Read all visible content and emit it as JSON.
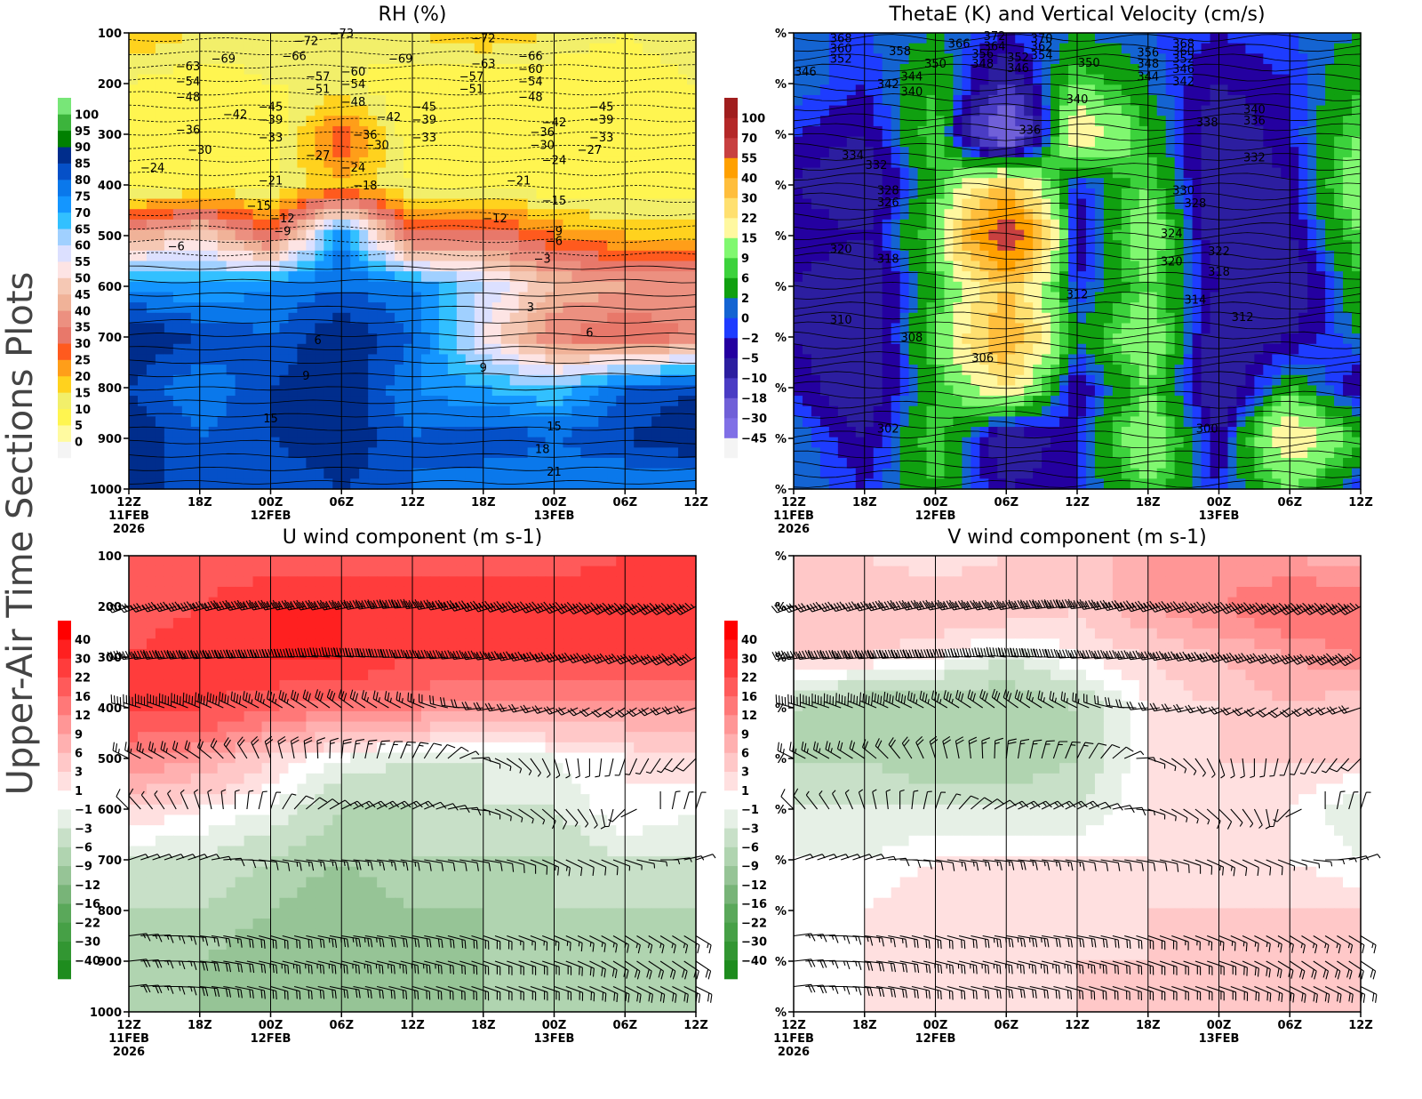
{
  "page_title": "Upper-Air Time Sections Plots",
  "chart_data": [
    {
      "id": "rh",
      "type": "heatmap",
      "title": "RH (%)",
      "x_ticks": [
        "12Z",
        "18Z",
        "00Z",
        "06Z",
        "12Z",
        "18Z",
        "00Z",
        "06Z",
        "12Z"
      ],
      "x_dates": [
        "11FEB",
        "",
        "12FEB",
        "",
        "",
        "",
        "13FEB",
        "",
        ""
      ],
      "x_year": "2026",
      "x_times": [
        "2026-02-11T12",
        "2026-02-11T18",
        "2026-02-12T00",
        "2026-02-12T06",
        "2026-02-12T12",
        "2026-02-12T18",
        "2026-02-13T00",
        "2026-02-13T06",
        "2026-02-13T12"
      ],
      "y_levels": [
        1000,
        900,
        800,
        700,
        600,
        500,
        400,
        300,
        200,
        100
      ],
      "y_tick_labels": [
        "1000",
        "900",
        "800",
        "700",
        "600",
        "500",
        "400",
        "300",
        "200",
        "100"
      ],
      "ylim": [
        1000,
        100
      ],
      "colorbar_levels": [
        0,
        5,
        10,
        15,
        20,
        25,
        30,
        35,
        40,
        45,
        50,
        55,
        60,
        65,
        70,
        75,
        80,
        85,
        90,
        95,
        100
      ],
      "colorbar_labels": [
        "0",
        "5",
        "10",
        "15",
        "20",
        "25",
        "30",
        "35",
        "40",
        "45",
        "50",
        "55",
        "60",
        "65",
        "70",
        "75",
        "80",
        "85",
        "90",
        "95",
        "100"
      ],
      "colors": [
        "#f4f4f4",
        "#fffaa0",
        "#fff550",
        "#f2ef6a",
        "#ffd21e",
        "#ff9e19",
        "#ff5a1e",
        "#e8786a",
        "#ec9080",
        "#f0b298",
        "#f5c8b4",
        "#fde4e4",
        "#dce0ff",
        "#a0d0ff",
        "#32c0ff",
        "#1496ff",
        "#0a78eb",
        "#0550c8",
        "#002d8c",
        "#008000",
        "#3cb43c",
        "#78e678"
      ],
      "values": [
        [
          85,
          85,
          80,
          85,
          80,
          75,
          75,
          75,
          75
        ],
        [
          90,
          80,
          85,
          90,
          80,
          85,
          80,
          85,
          90
        ],
        [
          85,
          75,
          85,
          90,
          75,
          70,
          65,
          80,
          85
        ],
        [
          90,
          85,
          80,
          90,
          80,
          55,
          35,
          30,
          35
        ],
        [
          75,
          70,
          75,
          80,
          75,
          60,
          45,
          40,
          40
        ],
        [
          40,
          50,
          30,
          75,
          30,
          35,
          25,
          20,
          20
        ],
        [
          5,
          10,
          10,
          20,
          10,
          10,
          5,
          5,
          5
        ],
        [
          5,
          5,
          5,
          30,
          5,
          5,
          5,
          10,
          10
        ],
        [
          10,
          5,
          10,
          10,
          5,
          5,
          5,
          5,
          10
        ],
        [
          20,
          15,
          15,
          15,
          15,
          20,
          15,
          10,
          15
        ]
      ],
      "contour_labels": [
        [
          "-69",
          "2026-02-11T20",
          150
        ],
        [
          "-72",
          "2026-02-12T03",
          115
        ],
        [
          "-66",
          "2026-02-12T02",
          145
        ],
        [
          "-73",
          "2026-02-12T06",
          100
        ],
        [
          "-63",
          "2026-02-11T17",
          165
        ],
        [
          "-54",
          "2026-02-11T17",
          195
        ],
        [
          "-48",
          "2026-02-11T17",
          225
        ],
        [
          "-42",
          "2026-02-11T21",
          260
        ],
        [
          "-45",
          "2026-02-12T00",
          245
        ],
        [
          "-39",
          "2026-02-12T00",
          270
        ],
        [
          "-33",
          "2026-02-12T00",
          305
        ],
        [
          "-36",
          "2026-02-11T17",
          290
        ],
        [
          "-30",
          "2026-02-11T18",
          330
        ],
        [
          "-24",
          "2026-02-11T14",
          365
        ],
        [
          "-21",
          "2026-02-12T00",
          390
        ],
        [
          "-57",
          "2026-02-12T04",
          185
        ],
        [
          "-51",
          "2026-02-12T04",
          210
        ],
        [
          "-60",
          "2026-02-12T07",
          175
        ],
        [
          "-54",
          "2026-02-12T07",
          200
        ],
        [
          "-48",
          "2026-02-12T07",
          235
        ],
        [
          "-27",
          "2026-02-12T04",
          340
        ],
        [
          "-24",
          "2026-02-12T07",
          365
        ],
        [
          "-18",
          "2026-02-12T08",
          400
        ],
        [
          "-36",
          "2026-02-12T08",
          300
        ],
        [
          "-30",
          "2026-02-12T09",
          320
        ],
        [
          "-42",
          "2026-02-12T10",
          265
        ],
        [
          "-69",
          "2026-02-12T11",
          150
        ],
        [
          "-45",
          "2026-02-12T13",
          245
        ],
        [
          "-39",
          "2026-02-12T13",
          270
        ],
        [
          "-33",
          "2026-02-12T13",
          305
        ],
        [
          "-15",
          "2026-02-11T23",
          440
        ],
        [
          "-12",
          "2026-02-12T01",
          465
        ],
        [
          "-9",
          "2026-02-12T01",
          490
        ],
        [
          "-6",
          "2026-02-11T16",
          520
        ],
        [
          "-72",
          "2026-02-12T18",
          110
        ],
        [
          "-63",
          "2026-02-12T18",
          160
        ],
        [
          "-57",
          "2026-02-12T17",
          185
        ],
        [
          "-51",
          "2026-02-12T17",
          210
        ],
        [
          "-66",
          "2026-02-12T22",
          145
        ],
        [
          "-60",
          "2026-02-12T22",
          170
        ],
        [
          "-54",
          "2026-02-12T22",
          195
        ],
        [
          "-48",
          "2026-02-12T22",
          225
        ],
        [
          "-42",
          "2026-02-13T00",
          275
        ],
        [
          "-36",
          "2026-02-12T23",
          295
        ],
        [
          "-30",
          "2026-02-12T23",
          320
        ],
        [
          "-24",
          "2026-02-13T00",
          350
        ],
        [
          "-21",
          "2026-02-12T21",
          390
        ],
        [
          "-15",
          "2026-02-13T00",
          430
        ],
        [
          "-12",
          "2026-02-12T19",
          465
        ],
        [
          "-9",
          "2026-02-13T00",
          490
        ],
        [
          "-6",
          "2026-02-13T00",
          510
        ],
        [
          "-3",
          "2026-02-12T23",
          545
        ],
        [
          "-45",
          "2026-02-13T04",
          245
        ],
        [
          "-39",
          "2026-02-13T04",
          270
        ],
        [
          "-33",
          "2026-02-13T04",
          305
        ],
        [
          "-27",
          "2026-02-13T03",
          330
        ],
        [
          "3",
          "2026-02-12T22",
          640
        ],
        [
          "6",
          "2026-02-13T03",
          690
        ],
        [
          "6",
          "2026-02-12T04",
          705
        ],
        [
          "9",
          "2026-02-12T18",
          760
        ],
        [
          "9",
          "2026-02-12T03",
          775
        ],
        [
          "15",
          "2026-02-12T00",
          860
        ],
        [
          "15",
          "2026-02-13T00",
          875
        ],
        [
          "18",
          "2026-02-12T23",
          920
        ],
        [
          "21",
          "2026-02-13T00",
          965
        ]
      ]
    },
    {
      "id": "thetae",
      "type": "heatmap",
      "title": "ThetaE (K) and Vertical Velocity (cm/s)",
      "y_tick_labels": [
        "%",
        "%",
        "%",
        "%",
        "%",
        "%",
        "%",
        "%",
        "%",
        "%"
      ],
      "colorbar_levels": [
        -45,
        -30,
        -18,
        -10,
        -5,
        -2,
        0,
        2,
        6,
        9,
        15,
        22,
        30,
        40,
        55,
        70,
        100
      ],
      "colorbar_labels": [
        "-45",
        "-30",
        "-18",
        "-10",
        "-5",
        "-2",
        "0",
        "2",
        "6",
        "9",
        "15",
        "22",
        "30",
        "40",
        "55",
        "70",
        "100"
      ],
      "colors": [
        "#f4f4f4",
        "#8070e6",
        "#7060d8",
        "#4a3cc4",
        "#2c1ea0",
        "#2400a0",
        "#1e3cff",
        "#1464d2",
        "#10a010",
        "#3cd23c",
        "#80f870",
        "#fff8a0",
        "#ffe070",
        "#ffbe3c",
        "#ffa000",
        "#c84040",
        "#b42828",
        "#a01e1e"
      ],
      "values": [
        [
          2,
          -2,
          6,
          -5,
          -2,
          9,
          -2,
          9,
          -2
        ],
        [
          2,
          -5,
          9,
          -10,
          -2,
          15,
          -5,
          22,
          6
        ],
        [
          -2,
          -10,
          6,
          22,
          -5,
          9,
          -10,
          6,
          -5
        ],
        [
          -5,
          -10,
          9,
          40,
          2,
          15,
          -10,
          -5,
          2
        ],
        [
          -5,
          -10,
          6,
          30,
          -2,
          9,
          -5,
          -10,
          6
        ],
        [
          -2,
          -5,
          9,
          70,
          -5,
          15,
          -10,
          -5,
          9
        ],
        [
          -5,
          -10,
          6,
          30,
          -2,
          9,
          -10,
          -5,
          15
        ],
        [
          -2,
          -5,
          9,
          -30,
          22,
          6,
          -10,
          -2,
          9
        ],
        [
          2,
          -2,
          6,
          -10,
          9,
          2,
          -5,
          -2,
          6
        ],
        [
          0,
          0,
          2,
          -2,
          2,
          0,
          -2,
          0,
          2
        ]
      ],
      "contour_labels": [
        [
          "368",
          "2026-02-11T16",
          110
        ],
        [
          "360",
          "2026-02-11T16",
          130
        ],
        [
          "352",
          "2026-02-11T16",
          150
        ],
        [
          "346",
          "2026-02-11T13",
          175
        ],
        [
          "358",
          "2026-02-11T21",
          135
        ],
        [
          "342",
          "2026-02-11T20",
          200
        ],
        [
          "344",
          "2026-02-11T22",
          185
        ],
        [
          "340",
          "2026-02-11T22",
          215
        ],
        [
          "350",
          "2026-02-12T00",
          160
        ],
        [
          "366",
          "2026-02-12T02",
          120
        ],
        [
          "356",
          "2026-02-12T04",
          140
        ],
        [
          "348",
          "2026-02-12T04",
          160
        ],
        [
          "372",
          "2026-02-12T05",
          105
        ],
        [
          "364",
          "2026-02-12T05",
          125
        ],
        [
          "352",
          "2026-02-12T07",
          147
        ],
        [
          "346",
          "2026-02-12T07",
          168
        ],
        [
          "370",
          "2026-02-12T09",
          110
        ],
        [
          "362",
          "2026-02-12T09",
          125
        ],
        [
          "354",
          "2026-02-12T09",
          143
        ],
        [
          "336",
          "2026-02-12T08",
          290
        ],
        [
          "350",
          "2026-02-12T13",
          158
        ],
        [
          "340",
          "2026-02-12T12",
          230
        ],
        [
          "356",
          "2026-02-12T18",
          138
        ],
        [
          "348",
          "2026-02-12T18",
          160
        ],
        [
          "344",
          "2026-02-12T18",
          185
        ],
        [
          "368",
          "2026-02-12T21",
          120
        ],
        [
          "360",
          "2026-02-12T21",
          135
        ],
        [
          "352",
          "2026-02-12T21",
          150
        ],
        [
          "346",
          "2026-02-12T21",
          170
        ],
        [
          "342",
          "2026-02-12T21",
          195
        ],
        [
          "338",
          "2026-02-12T23",
          275
        ],
        [
          "340",
          "2026-02-13T03",
          250
        ],
        [
          "336",
          "2026-02-13T03",
          272
        ],
        [
          "332",
          "2026-02-13T03",
          345
        ],
        [
          "334",
          "2026-02-11T17",
          340
        ],
        [
          "332",
          "2026-02-11T19",
          360
        ],
        [
          "328",
          "2026-02-11T20",
          410
        ],
        [
          "326",
          "2026-02-11T20",
          433
        ],
        [
          "330",
          "2026-02-12T21",
          410
        ],
        [
          "328",
          "2026-02-12T22",
          435
        ],
        [
          "320",
          "2026-02-11T16",
          525
        ],
        [
          "318",
          "2026-02-11T20",
          545
        ],
        [
          "324",
          "2026-02-12T20",
          495
        ],
        [
          "322",
          "2026-02-13T00",
          530
        ],
        [
          "320",
          "2026-02-12T20",
          550
        ],
        [
          "318",
          "2026-02-13T00",
          570
        ],
        [
          "314",
          "2026-02-12T22",
          625
        ],
        [
          "312",
          "2026-02-12T12",
          615
        ],
        [
          "312",
          "2026-02-13T02",
          660
        ],
        [
          "310",
          "2026-02-11T16",
          665
        ],
        [
          "308",
          "2026-02-11T22",
          700
        ],
        [
          "306",
          "2026-02-12T04",
          740
        ],
        [
          "302",
          "2026-02-11T20",
          880
        ],
        [
          "300",
          "2026-02-12T23",
          880
        ]
      ]
    },
    {
      "id": "u",
      "type": "heatmap",
      "title": "U wind component (m s-1)",
      "colorbar_levels": [
        -40,
        -30,
        -22,
        -16,
        -12,
        -9,
        -6,
        -3,
        -1,
        1,
        3,
        6,
        9,
        12,
        16,
        22,
        30,
        40
      ],
      "colorbar_labels": [
        "-40",
        "-30",
        "-22",
        "-16",
        "-12",
        "-9",
        "-6",
        "-3",
        "-1",
        "1",
        "3",
        "6",
        "9",
        "12",
        "16",
        "22",
        "30",
        "40"
      ],
      "colors": [
        "#1e8c1e",
        "#329632",
        "#46a046",
        "#5aa85a",
        "#78b478",
        "#96c496",
        "#b0d4b0",
        "#c8e0c8",
        "#e6f0e6",
        "#ffffff",
        "#ffe0e0",
        "#ffc8c8",
        "#ffb0b0",
        "#ff9696",
        "#ff7878",
        "#ff5a5a",
        "#ff3c3c",
        "#ff2020",
        "#ff0000"
      ],
      "values": [
        [
          -9,
          -9,
          -9,
          -9,
          -9,
          -9,
          -9,
          -9,
          -9
        ],
        [
          -9,
          -9,
          -12,
          -12,
          -12,
          -9,
          -9,
          -9,
          -9
        ],
        [
          -6,
          -6,
          -9,
          -12,
          -9,
          -9,
          -6,
          -6,
          -6
        ],
        [
          -3,
          -3,
          -6,
          -9,
          -6,
          -6,
          -6,
          -3,
          -3
        ],
        [
          3,
          1,
          -1,
          -6,
          -6,
          -3,
          -3,
          1,
          -1
        ],
        [
          12,
          9,
          3,
          -1,
          -3,
          -3,
          -1,
          1,
          3
        ],
        [
          22,
          22,
          16,
          12,
          12,
          9,
          9,
          9,
          9
        ],
        [
          22,
          30,
          30,
          30,
          22,
          22,
          22,
          22,
          22
        ],
        [
          16,
          22,
          30,
          30,
          30,
          30,
          30,
          30,
          30
        ],
        [
          16,
          16,
          16,
          16,
          16,
          16,
          16,
          22,
          30
        ]
      ],
      "barb_levels": [
        200,
        300,
        400,
        500,
        600,
        700,
        850,
        900,
        950
      ]
    },
    {
      "id": "v",
      "type": "heatmap",
      "title": "V wind component (m s-1)",
      "values": [
        [
          -1,
          1,
          3,
          1,
          3,
          3,
          3,
          3,
          3
        ],
        [
          -1,
          1,
          3,
          3,
          3,
          3,
          3,
          6,
          6
        ],
        [
          -1,
          1,
          3,
          1,
          1,
          3,
          3,
          3,
          3
        ],
        [
          -1,
          -1,
          1,
          1,
          1,
          1,
          3,
          1,
          -1
        ],
        [
          -3,
          -3,
          -3,
          -3,
          -3,
          1,
          3,
          1,
          -3
        ],
        [
          -6,
          -6,
          -9,
          -9,
          -6,
          1,
          3,
          3,
          3
        ],
        [
          -6,
          -9,
          -9,
          -9,
          -6,
          1,
          3,
          6,
          3
        ],
        [
          3,
          3,
          1,
          -3,
          1,
          3,
          6,
          9,
          12
        ],
        [
          6,
          6,
          6,
          6,
          3,
          9,
          12,
          16,
          16
        ],
        [
          3,
          3,
          1,
          3,
          3,
          9,
          9,
          9,
          6
        ]
      ]
    }
  ]
}
